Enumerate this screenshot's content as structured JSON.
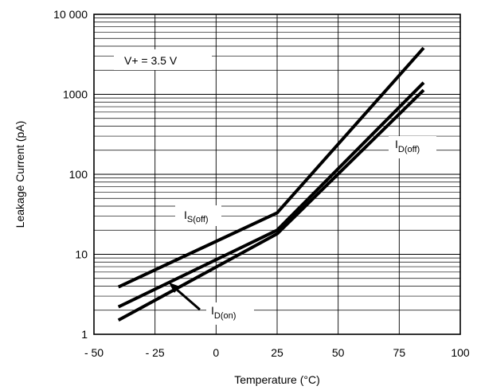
{
  "chart_data": {
    "type": "line",
    "xlabel": "Temperature (°C)",
    "ylabel": "Leakage Current (pA)",
    "x_scale": "linear",
    "y_scale": "log",
    "xlim": [
      -50,
      100
    ],
    "ylim": [
      1,
      10000
    ],
    "x_ticks": [
      -50,
      -25,
      0,
      25,
      50,
      75,
      100
    ],
    "x_tick_labels": [
      "- 50",
      "- 25",
      "0",
      "25",
      "50",
      "75",
      "100"
    ],
    "y_ticks": [
      1,
      10,
      100,
      1000,
      10000
    ],
    "y_tick_labels": [
      "1",
      "10",
      "100",
      "1000",
      "10 000"
    ],
    "grid": true,
    "series": [
      {
        "name": "IS(off)",
        "x": [
          -40,
          25,
          85
        ],
        "y": [
          3.9,
          33,
          3800
        ]
      },
      {
        "name": "ID(off)",
        "x": [
          -40,
          25,
          85
        ],
        "y": [
          2.2,
          20,
          1400
        ]
      },
      {
        "name": "ID(on)",
        "x": [
          -40,
          25,
          85
        ],
        "y": [
          1.5,
          18,
          1130
        ]
      }
    ],
    "annotations": [
      {
        "id": "condition",
        "text": "V+ = 3.5 V"
      },
      {
        "id": "is_off",
        "main": "I",
        "sub": "S(off)"
      },
      {
        "id": "id_off",
        "main": "I",
        "sub": "D(off)"
      },
      {
        "id": "id_on",
        "main": "I",
        "sub": "D(on)"
      }
    ]
  }
}
